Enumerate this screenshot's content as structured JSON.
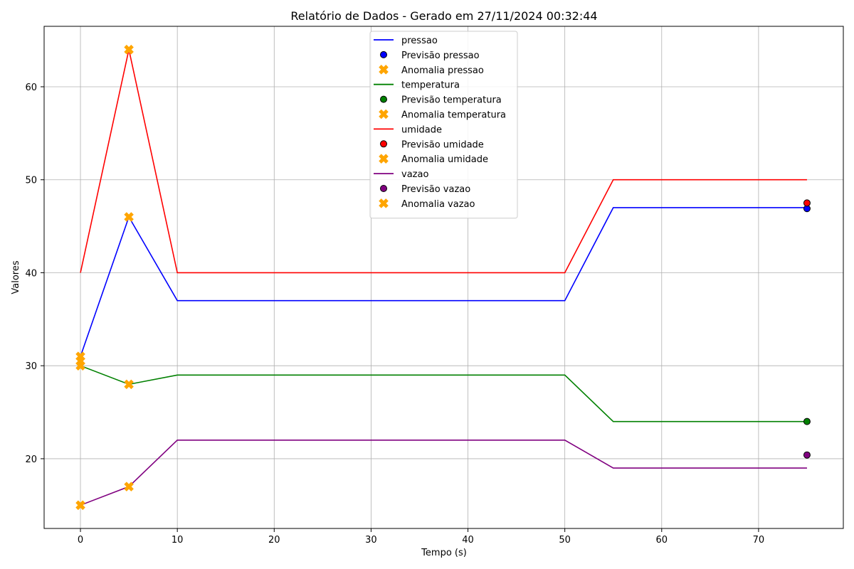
{
  "chart_data": {
    "type": "line",
    "title": "Relatório de Dados - Gerado em 27/11/2024 00:32:44",
    "xlabel": "Tempo (s)",
    "ylabel": "Valores",
    "xlim": [
      -3.75,
      78.75
    ],
    "ylim": [
      12.5,
      66.5
    ],
    "xticks": [
      0,
      10,
      20,
      30,
      40,
      50,
      60,
      70
    ],
    "yticks": [
      20,
      30,
      40,
      50,
      60
    ],
    "grid": true,
    "legend_position": "upper-center",
    "x": [
      0,
      5,
      10,
      50,
      55,
      75
    ],
    "series": [
      {
        "name": "pressao",
        "color": "#0000ff",
        "values": [
          31,
          46,
          37,
          37,
          47,
          47
        ],
        "forecast": {
          "name": "Previsão pressao",
          "x": 75,
          "y": 46.9
        },
        "anomalies": {
          "name": "Anomalia pressao",
          "points": [
            [
              5,
              46
            ]
          ]
        }
      },
      {
        "name": "temperatura",
        "color": "#008000",
        "values": [
          30,
          28,
          29,
          29,
          24,
          24
        ],
        "forecast": {
          "name": "Previsão temperatura",
          "x": 75,
          "y": 24
        },
        "anomalies": {
          "name": "Anomalia temperatura",
          "points": [
            [
              0,
              30
            ],
            [
              5,
              28
            ]
          ]
        }
      },
      {
        "name": "umidade",
        "color": "#ff0000",
        "values": [
          40,
          64,
          40,
          40,
          50,
          50
        ],
        "forecast": {
          "name": "Previsão umidade",
          "x": 75,
          "y": 47.5
        },
        "anomalies": {
          "name": "Anomalia umidade",
          "points": [
            [
              5,
              64
            ]
          ]
        }
      },
      {
        "name": "vazao",
        "color": "#800080",
        "values": [
          15,
          17,
          22,
          22,
          19,
          19
        ],
        "forecast": {
          "name": "Previsão vazao",
          "x": 75,
          "y": 20.4
        },
        "anomalies": {
          "name": "Anomalia vazao",
          "points": [
            [
              0,
              15
            ],
            [
              5,
              17
            ]
          ]
        }
      }
    ],
    "anomaly_color": "#ffa500",
    "extra_anomaly_points": [
      [
        0,
        31
      ],
      [
        0,
        30.5
      ]
    ]
  }
}
